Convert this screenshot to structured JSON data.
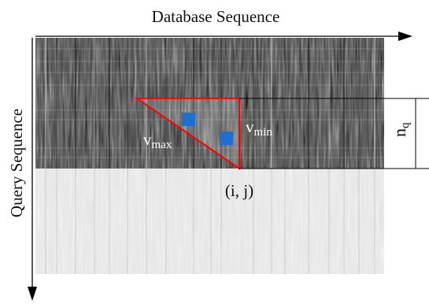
{
  "labels": {
    "x_axis": "Database Sequence",
    "y_axis": "Query Sequence",
    "v_max_base": "v",
    "v_max_sub": "max",
    "v_min_base": "v",
    "v_min_sub": "min",
    "n_q_base": "n",
    "n_q_sub": "q",
    "cell": "(i, j)"
  },
  "colors": {
    "triangle": "#ff0000",
    "squares": "#1f6fd1",
    "axis": "#000000",
    "matrix_dark": "#3a3a3a",
    "matrix_light": "#e6e6e6"
  },
  "icons": {
    "x_axis": "right-arrow-icon",
    "y_axis": "down-arrow-icon",
    "band_brace": "bracket-icon"
  }
}
